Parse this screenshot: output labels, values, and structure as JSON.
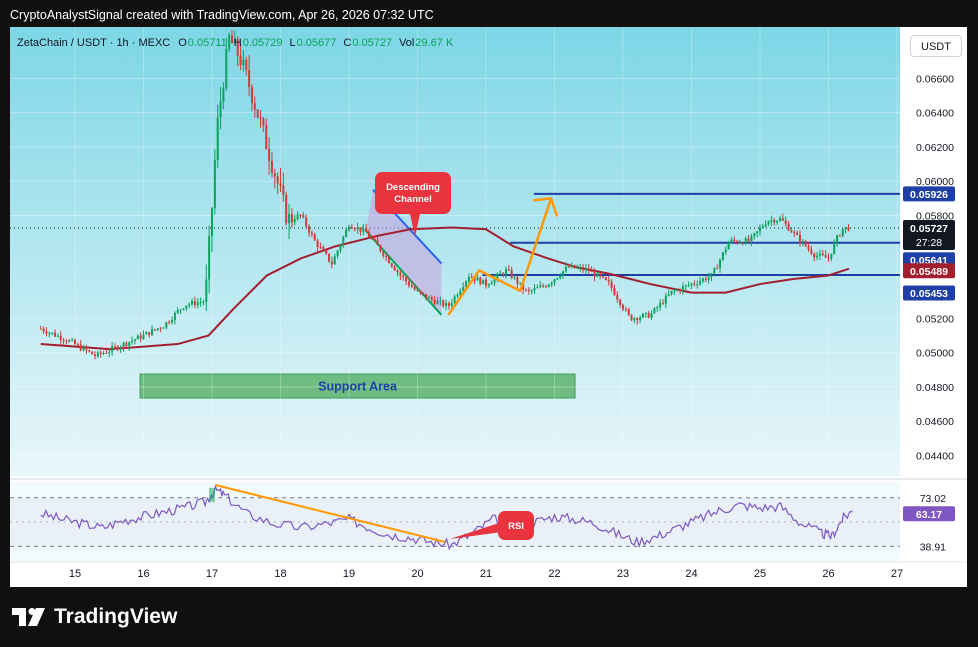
{
  "header": {
    "credit": "CryptoAnalystSignal created with TradingView.com, Apr 26, 2026 07:32 UTC"
  },
  "legend": {
    "symbol": "ZetaChain / USDT · 1h · MEXC",
    "o_label": "O",
    "o": "0.05711",
    "h_label": "H",
    "h": "0.05729",
    "l_label": "L",
    "l": "0.05677",
    "c_label": "C",
    "c": "0.05727",
    "vol_label": "Vol",
    "vol": "29.67 K"
  },
  "unit_button": "USDT",
  "annotations": {
    "descending_channel_line1": "Descending",
    "descending_channel_line2": "Channel",
    "support_area": "Support Area",
    "rsi": "RSI"
  },
  "price_badges": {
    "current": "0.05727",
    "countdown": "27:28",
    "upper_resistance": "0.05926",
    "mid_resistance": "0.05641",
    "ma": "0.05489",
    "support_line": "0.05453"
  },
  "rsi_badges": {
    "upper": "73.02",
    "current": "63.17",
    "lower": "38.91"
  },
  "footer": {
    "brand": "TradingView"
  },
  "colors": {
    "bg_gradient_top": "#7dd6e6",
    "bg_gradient_bottom": "#e9f7fa",
    "candle_up": "#0aa35c",
    "candle_down": "#d43a3a",
    "ma": "#a31f2f",
    "level_line": "#1e3fa6",
    "support_area": "#5cb36d",
    "arrow": "#ff9800",
    "rsi": "#7e57c2",
    "callout": "#e9343f"
  },
  "chart_data": {
    "type": "candlestick",
    "x": {
      "tick_labels": [
        "15",
        "16",
        "17",
        "18",
        "19",
        "20",
        "21",
        "22",
        "23",
        "24",
        "25",
        "26",
        "27"
      ]
    },
    "y": {
      "range": [
        0.0428,
        0.069
      ],
      "tick_labels": [
        "0.06600",
        "0.06400",
        "0.06200",
        "0.06000",
        "0.05800",
        "0.05200",
        "0.05000",
        "0.04800",
        "0.04600",
        "0.04400"
      ]
    },
    "price_path": [
      [
        14.5,
        0.0514
      ],
      [
        14.9,
        0.0507
      ],
      [
        15.3,
        0.0498
      ],
      [
        15.6,
        0.0503
      ],
      [
        16.0,
        0.051
      ],
      [
        16.3,
        0.0516
      ],
      [
        16.6,
        0.0528
      ],
      [
        16.9,
        0.053
      ],
      [
        17.0,
        0.0585
      ],
      [
        17.07,
        0.063
      ],
      [
        17.15,
        0.0655
      ],
      [
        17.25,
        0.0683
      ],
      [
        17.4,
        0.0673
      ],
      [
        17.55,
        0.0655
      ],
      [
        17.75,
        0.0628
      ],
      [
        17.95,
        0.06
      ],
      [
        18.1,
        0.0578
      ],
      [
        18.3,
        0.058
      ],
      [
        18.5,
        0.0565
      ],
      [
        18.75,
        0.0552
      ],
      [
        19.0,
        0.0575
      ],
      [
        19.25,
        0.057
      ],
      [
        19.5,
        0.0558
      ],
      [
        19.75,
        0.0545
      ],
      [
        20.0,
        0.0535
      ],
      [
        20.25,
        0.053
      ],
      [
        20.45,
        0.0527
      ],
      [
        20.75,
        0.0545
      ],
      [
        21.0,
        0.054
      ],
      [
        21.3,
        0.0548
      ],
      [
        21.6,
        0.0535
      ],
      [
        21.9,
        0.054
      ],
      [
        22.2,
        0.055
      ],
      [
        22.5,
        0.0548
      ],
      [
        22.8,
        0.054
      ],
      [
        23.1,
        0.052
      ],
      [
        23.4,
        0.0522
      ],
      [
        23.7,
        0.0535
      ],
      [
        24.0,
        0.054
      ],
      [
        24.3,
        0.0545
      ],
      [
        24.55,
        0.0565
      ],
      [
        24.85,
        0.0565
      ],
      [
        25.1,
        0.0577
      ],
      [
        25.3,
        0.0578
      ],
      [
        25.55,
        0.0567
      ],
      [
        25.8,
        0.0557
      ],
      [
        26.0,
        0.0555
      ],
      [
        26.1,
        0.0565
      ],
      [
        26.2,
        0.0572
      ],
      [
        26.3,
        0.0573
      ]
    ],
    "moving_average": [
      [
        14.5,
        0.0505
      ],
      [
        15.5,
        0.0502
      ],
      [
        16.5,
        0.0505
      ],
      [
        16.95,
        0.051
      ],
      [
        17.3,
        0.0525
      ],
      [
        17.8,
        0.0545
      ],
      [
        18.3,
        0.0555
      ],
      [
        18.8,
        0.0562
      ],
      [
        19.4,
        0.0568
      ],
      [
        19.9,
        0.0572
      ],
      [
        20.5,
        0.0573
      ],
      [
        21.0,
        0.0572
      ],
      [
        21.4,
        0.0562
      ],
      [
        21.9,
        0.0555
      ],
      [
        22.3,
        0.055
      ],
      [
        22.8,
        0.0546
      ],
      [
        23.4,
        0.054
      ],
      [
        24.0,
        0.0535
      ],
      [
        24.5,
        0.0535
      ],
      [
        25.0,
        0.054
      ],
      [
        25.5,
        0.0543
      ],
      [
        26.0,
        0.0545
      ],
      [
        26.3,
        0.0549
      ]
    ],
    "horizontal_levels": [
      {
        "y": 0.05926,
        "x_from": 21.7,
        "x_to": 27.2
      },
      {
        "y": 0.05641,
        "x_from": 21.35,
        "x_to": 27.2
      },
      {
        "y": 0.05453,
        "x_from": 20.95,
        "x_to": 27.2
      }
    ],
    "current_price": 0.05727,
    "support_area": {
      "x_from": 15.95,
      "x_to": 22.3,
      "y_from": 0.04735,
      "y_to": 0.04875
    },
    "descending_channel": {
      "upper": [
        [
          19.35,
          0.0595
        ],
        [
          20.35,
          0.0552
        ]
      ],
      "lower": [
        [
          19.25,
          0.0571
        ],
        [
          20.35,
          0.0522
        ]
      ]
    },
    "projection_path": [
      [
        20.45,
        0.0522
      ],
      [
        20.9,
        0.0548
      ],
      [
        21.5,
        0.0536
      ],
      [
        21.95,
        0.059
      ]
    ],
    "rsi": {
      "range": [
        30,
        82
      ],
      "levels": [
        73.02,
        38.91
      ],
      "current": 63.17,
      "path": [
        [
          14.5,
          62
        ],
        [
          14.8,
          58
        ],
        [
          15.1,
          55
        ],
        [
          15.4,
          52
        ],
        [
          15.7,
          57
        ],
        [
          16.0,
          60
        ],
        [
          16.3,
          63
        ],
        [
          16.6,
          66
        ],
        [
          16.9,
          70
        ],
        [
          17.05,
          79
        ],
        [
          17.2,
          74
        ],
        [
          17.5,
          62
        ],
        [
          17.9,
          55
        ],
        [
          18.3,
          52
        ],
        [
          18.7,
          55
        ],
        [
          19.0,
          58
        ],
        [
          19.3,
          52
        ],
        [
          19.6,
          47
        ],
        [
          19.9,
          45
        ],
        [
          20.2,
          42
        ],
        [
          20.5,
          40
        ],
        [
          20.8,
          48
        ],
        [
          21.1,
          58
        ],
        [
          21.4,
          54
        ],
        [
          21.7,
          56
        ],
        [
          22.0,
          60
        ],
        [
          22.3,
          58
        ],
        [
          22.6,
          55
        ],
        [
          22.9,
          48
        ],
        [
          23.2,
          42
        ],
        [
          23.5,
          46
        ],
        [
          23.8,
          52
        ],
        [
          24.1,
          58
        ],
        [
          24.4,
          64
        ],
        [
          24.7,
          68
        ],
        [
          25.0,
          66
        ],
        [
          25.3,
          67
        ],
        [
          25.6,
          55
        ],
        [
          25.9,
          48
        ],
        [
          26.05,
          46
        ],
        [
          26.2,
          58
        ],
        [
          26.35,
          64
        ]
      ],
      "divergence_line": [
        [
          17.05,
          82
        ],
        [
          20.4,
          42
        ]
      ]
    }
  }
}
